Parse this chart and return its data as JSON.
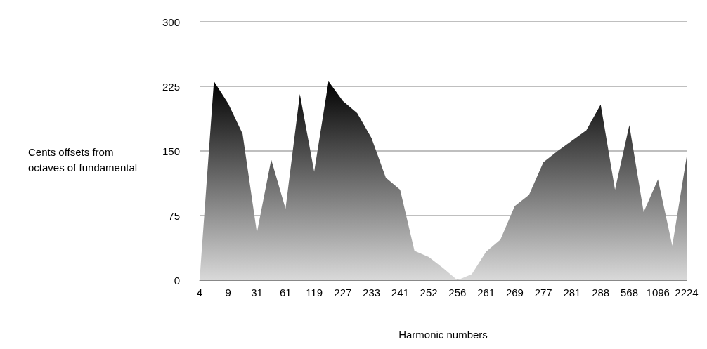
{
  "chart_data": {
    "type": "area",
    "xlabel": "Harmonic numbers",
    "ylabel": "Cents offsets from octaves of fundamental",
    "categories": [
      "4",
      null,
      "9",
      null,
      "31",
      null,
      "61",
      null,
      "119",
      null,
      "227",
      null,
      "233",
      null,
      "241",
      null,
      "252",
      null,
      "256",
      null,
      "261",
      null,
      "269",
      null,
      "277",
      null,
      "281",
      null,
      "288",
      null,
      "568",
      null,
      "1096",
      null,
      "2224"
    ],
    "series": [
      {
        "color": "#000000",
        "values": [
          0,
          231,
          205,
          170,
          55,
          140,
          83,
          216,
          126,
          231,
          208,
          194,
          165,
          119,
          105,
          34,
          27,
          14,
          0,
          7,
          33,
          47,
          86,
          99,
          137,
          150,
          162,
          174,
          204,
          105,
          180,
          79,
          117,
          40,
          143
        ]
      }
    ],
    "ylim": [
      0,
      300
    ],
    "yticks": [
      0,
      75,
      150,
      225,
      300
    ],
    "grid": "y"
  }
}
